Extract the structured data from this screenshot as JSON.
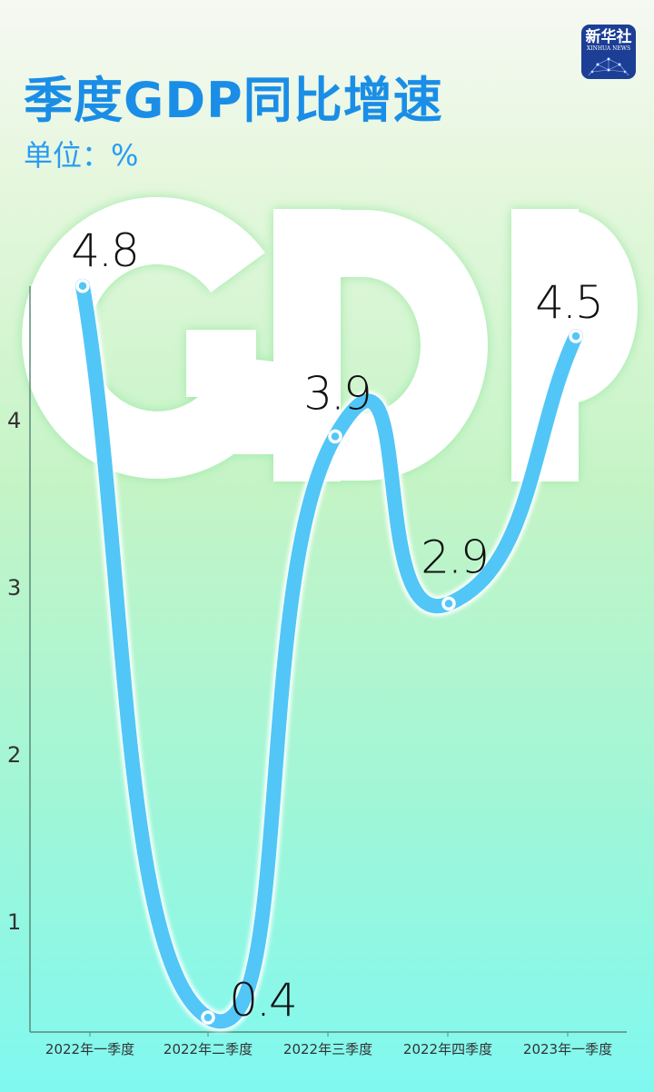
{
  "header": {
    "title": "季度GDP同比增速",
    "unit": "单位：%"
  },
  "logo": {
    "cn": "新华社",
    "en": "XINHUA NEWS"
  },
  "background_text": "GDP",
  "colors": {
    "title": "#1a8ee6",
    "line": "#52c6f7",
    "background_text": "#ffffff"
  },
  "chart_data": {
    "type": "line",
    "title": "季度GDP同比增速",
    "ylabel": "单位：%",
    "categories": [
      "2022年一季度",
      "2022年二季度",
      "2022年三季度",
      "2022年四季度",
      "2023年一季度"
    ],
    "values": [
      4.8,
      0.4,
      3.9,
      2.9,
      4.5
    ],
    "data_labels": [
      "4.8",
      "0.4",
      "3.9",
      "2.9",
      "4.5"
    ],
    "yticks": [
      1,
      2,
      3,
      4
    ],
    "ylim": [
      0.4,
      4.8
    ],
    "grid": false,
    "smooth": true
  }
}
